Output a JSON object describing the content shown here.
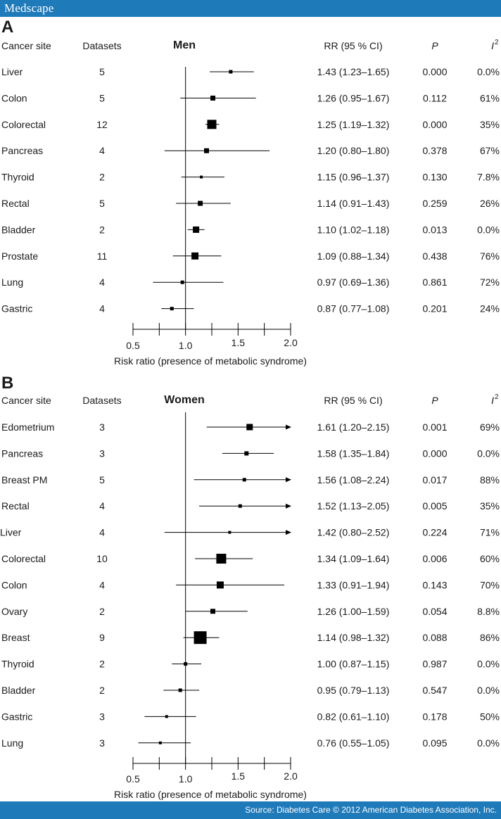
{
  "brand": "Medscape",
  "source": "Source: Diabetes Care © 2012 American Diabetes Association, Inc.",
  "colors": {
    "bar": "#1f7ab9",
    "ink": "#000000"
  },
  "columns": {
    "site": "Cancer site",
    "datasets": "Datasets",
    "rr": "RR (95 % CI)",
    "p": "P",
    "i2": "I",
    "i2_sup": "2"
  },
  "chart_data": [
    {
      "type": "forest",
      "panel": "A",
      "group": "Men",
      "xlabel": "Risk ratio (presence of metabolic syndrome)",
      "xlim": [
        0.5,
        2.0
      ],
      "ticks": [
        0.5,
        1.0,
        1.5,
        2.0
      ],
      "tick_labels": [
        "0.5",
        "1.0",
        "1.5",
        "2.0"
      ],
      "minor_ticks": [
        0.75,
        1.25,
        1.75
      ],
      "reference_line": 1.0,
      "rows": [
        {
          "site": "Liver",
          "datasets": "5",
          "rr": 1.43,
          "lo": 1.23,
          "hi": 1.65,
          "rr_text": "1.43 (1.23–1.65)",
          "p": "0.000",
          "i2": "0.0%",
          "marker": 5
        },
        {
          "site": "Colon",
          "datasets": "5",
          "rr": 1.26,
          "lo": 0.95,
          "hi": 1.67,
          "rr_text": "1.26 (0.95–1.67)",
          "p": "0.112",
          "i2": "61%",
          "marker": 7
        },
        {
          "site": "Colorectal",
          "datasets": "12",
          "rr": 1.25,
          "lo": 1.19,
          "hi": 1.32,
          "rr_text": "1.25 (1.19–1.32)",
          "p": "0.000",
          "i2": "35%",
          "marker": 13
        },
        {
          "site": "Pancreas",
          "datasets": "4",
          "rr": 1.2,
          "lo": 0.8,
          "hi": 1.8,
          "rr_text": "1.20 (0.80–1.80)",
          "p": "0.378",
          "i2": "67%",
          "marker": 7
        },
        {
          "site": "Thyroid",
          "datasets": "2",
          "rr": 1.15,
          "lo": 0.96,
          "hi": 1.37,
          "rr_text": "1.15 (0.96–1.37)",
          "p": "0.130",
          "i2": "7.8%",
          "marker": 4
        },
        {
          "site": "Rectal",
          "datasets": "5",
          "rr": 1.14,
          "lo": 0.91,
          "hi": 1.43,
          "rr_text": "1.14 (0.91–1.43)",
          "p": "0.259",
          "i2": "26%",
          "marker": 7
        },
        {
          "site": "Bladder",
          "datasets": "2",
          "rr": 1.1,
          "lo": 1.02,
          "hi": 1.18,
          "rr_text": "1.10 (1.02–1.18)",
          "p": "0.013",
          "i2": "0.0%",
          "marker": 9
        },
        {
          "site": "Prostate",
          "datasets": "11",
          "rr": 1.09,
          "lo": 0.88,
          "hi": 1.34,
          "rr_text": "1.09 (0.88–1.34)",
          "p": "0.438",
          "i2": "76%",
          "marker": 10
        },
        {
          "site": "Lung",
          "datasets": "4",
          "rr": 0.97,
          "lo": 0.69,
          "hi": 1.36,
          "rr_text": "0.97 (0.69–1.36)",
          "p": "0.861",
          "i2": "72%",
          "marker": 5
        },
        {
          "site": "Gastric",
          "datasets": "4",
          "rr": 0.87,
          "lo": 0.77,
          "hi": 1.08,
          "rr_text": "0.87 (0.77–1.08)",
          "p": "0.201",
          "i2": "24%",
          "marker": 5
        }
      ]
    },
    {
      "type": "forest",
      "panel": "B",
      "group": "Women",
      "xlabel": "Risk ratio (presence of metabolic syndrome)",
      "xlim": [
        0.5,
        2.0
      ],
      "ticks": [
        0.5,
        1.0,
        1.5,
        2.0
      ],
      "tick_labels": [
        "0.5",
        "1.0",
        "1.5",
        "2.0"
      ],
      "minor_ticks": [
        0.75,
        1.25,
        1.75
      ],
      "reference_line": 1.0,
      "rows": [
        {
          "site": "Edometrium",
          "datasets": "3",
          "rr": 1.61,
          "lo": 1.2,
          "hi": 2.15,
          "rr_text": "1.61 (1.20–2.15)",
          "p": "0.001",
          "i2": "69%",
          "marker": 9
        },
        {
          "site": "Pancreas",
          "datasets": "3",
          "rr": 1.58,
          "lo": 1.35,
          "hi": 1.84,
          "rr_text": "1.58 (1.35–1.84)",
          "p": "0.000",
          "i2": "0.0%",
          "marker": 6
        },
        {
          "site": "Breast PM",
          "datasets": "5",
          "rr": 1.56,
          "lo": 1.08,
          "hi": 2.24,
          "rr_text": "1.56 (1.08–2.24)",
          "p": "0.017",
          "i2": "88%",
          "marker": 5
        },
        {
          "site": "Rectal",
          "datasets": "4",
          "rr": 1.52,
          "lo": 1.13,
          "hi": 2.05,
          "rr_text": "1.52 (1.13–2.05)",
          "p": "0.005",
          "i2": "35%",
          "marker": 5
        },
        {
          "site": "Liver",
          "datasets": "4",
          "rr": 1.42,
          "lo": 0.8,
          "hi": 2.52,
          "rr_text": "1.42 (0.80–2.52)",
          "p": "0.224",
          "i2": "71%",
          "marker": 4
        },
        {
          "site": "Colorectal",
          "datasets": "10",
          "rr": 1.34,
          "lo": 1.09,
          "hi": 1.64,
          "rr_text": "1.34 (1.09–1.64)",
          "p": "0.006",
          "i2": "60%",
          "marker": 14
        },
        {
          "site": "Colon",
          "datasets": "4",
          "rr": 1.33,
          "lo": 0.91,
          "hi": 1.94,
          "rr_text": "1.33 (0.91–1.94)",
          "p": "0.143",
          "i2": "70%",
          "marker": 10
        },
        {
          "site": "Ovary",
          "datasets": "2",
          "rr": 1.26,
          "lo": 1.0,
          "hi": 1.59,
          "rr_text": "1.26 (1.00–1.59)",
          "p": "0.054",
          "i2": "8.8%",
          "marker": 7
        },
        {
          "site": "Breast",
          "datasets": "9",
          "rr": 1.14,
          "lo": 0.98,
          "hi": 1.32,
          "rr_text": "1.14 (0.98–1.32)",
          "p": "0.088",
          "i2": "86%",
          "marker": 18
        },
        {
          "site": "Thyroid",
          "datasets": "2",
          "rr": 1.0,
          "lo": 0.87,
          "hi": 1.15,
          "rr_text": "1.00 (0.87–1.15)",
          "p": "0.987",
          "i2": "0.0%",
          "marker": 5
        },
        {
          "site": "Bladder",
          "datasets": "2",
          "rr": 0.95,
          "lo": 0.79,
          "hi": 1.13,
          "rr_text": "0.95 (0.79–1.13)",
          "p": "0.547",
          "i2": "0.0%",
          "marker": 5
        },
        {
          "site": "Gastric",
          "datasets": "3",
          "rr": 0.82,
          "lo": 0.61,
          "hi": 1.1,
          "rr_text": "0.82 (0.61–1.10)",
          "p": "0.178",
          "i2": "50%",
          "marker": 4
        },
        {
          "site": "Lung",
          "datasets": "3",
          "rr": 0.76,
          "lo": 0.55,
          "hi": 1.05,
          "rr_text": "0.76 (0.55–1.05)",
          "p": "0.095",
          "i2": "0.0%",
          "marker": 4
        }
      ]
    }
  ]
}
